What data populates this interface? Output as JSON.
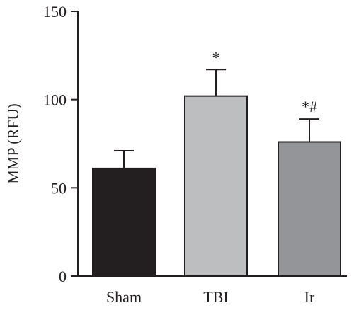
{
  "chart_data": {
    "type": "bar",
    "categories": [
      "Sham",
      "TBI",
      "Ir"
    ],
    "values": [
      61,
      102,
      76
    ],
    "errors": [
      10,
      15,
      13
    ],
    "annotations": [
      "",
      "*",
      "*#"
    ],
    "colors": [
      "#231f20",
      "#bcbec0",
      "#939598"
    ],
    "title": "",
    "xlabel": "",
    "ylabel": "MMP (RFU)",
    "ylim": [
      0,
      150
    ],
    "yticks": [
      0,
      50,
      100,
      150
    ],
    "ytick_labels": [
      "0",
      "50",
      "100",
      "150"
    ],
    "grid": false
  }
}
